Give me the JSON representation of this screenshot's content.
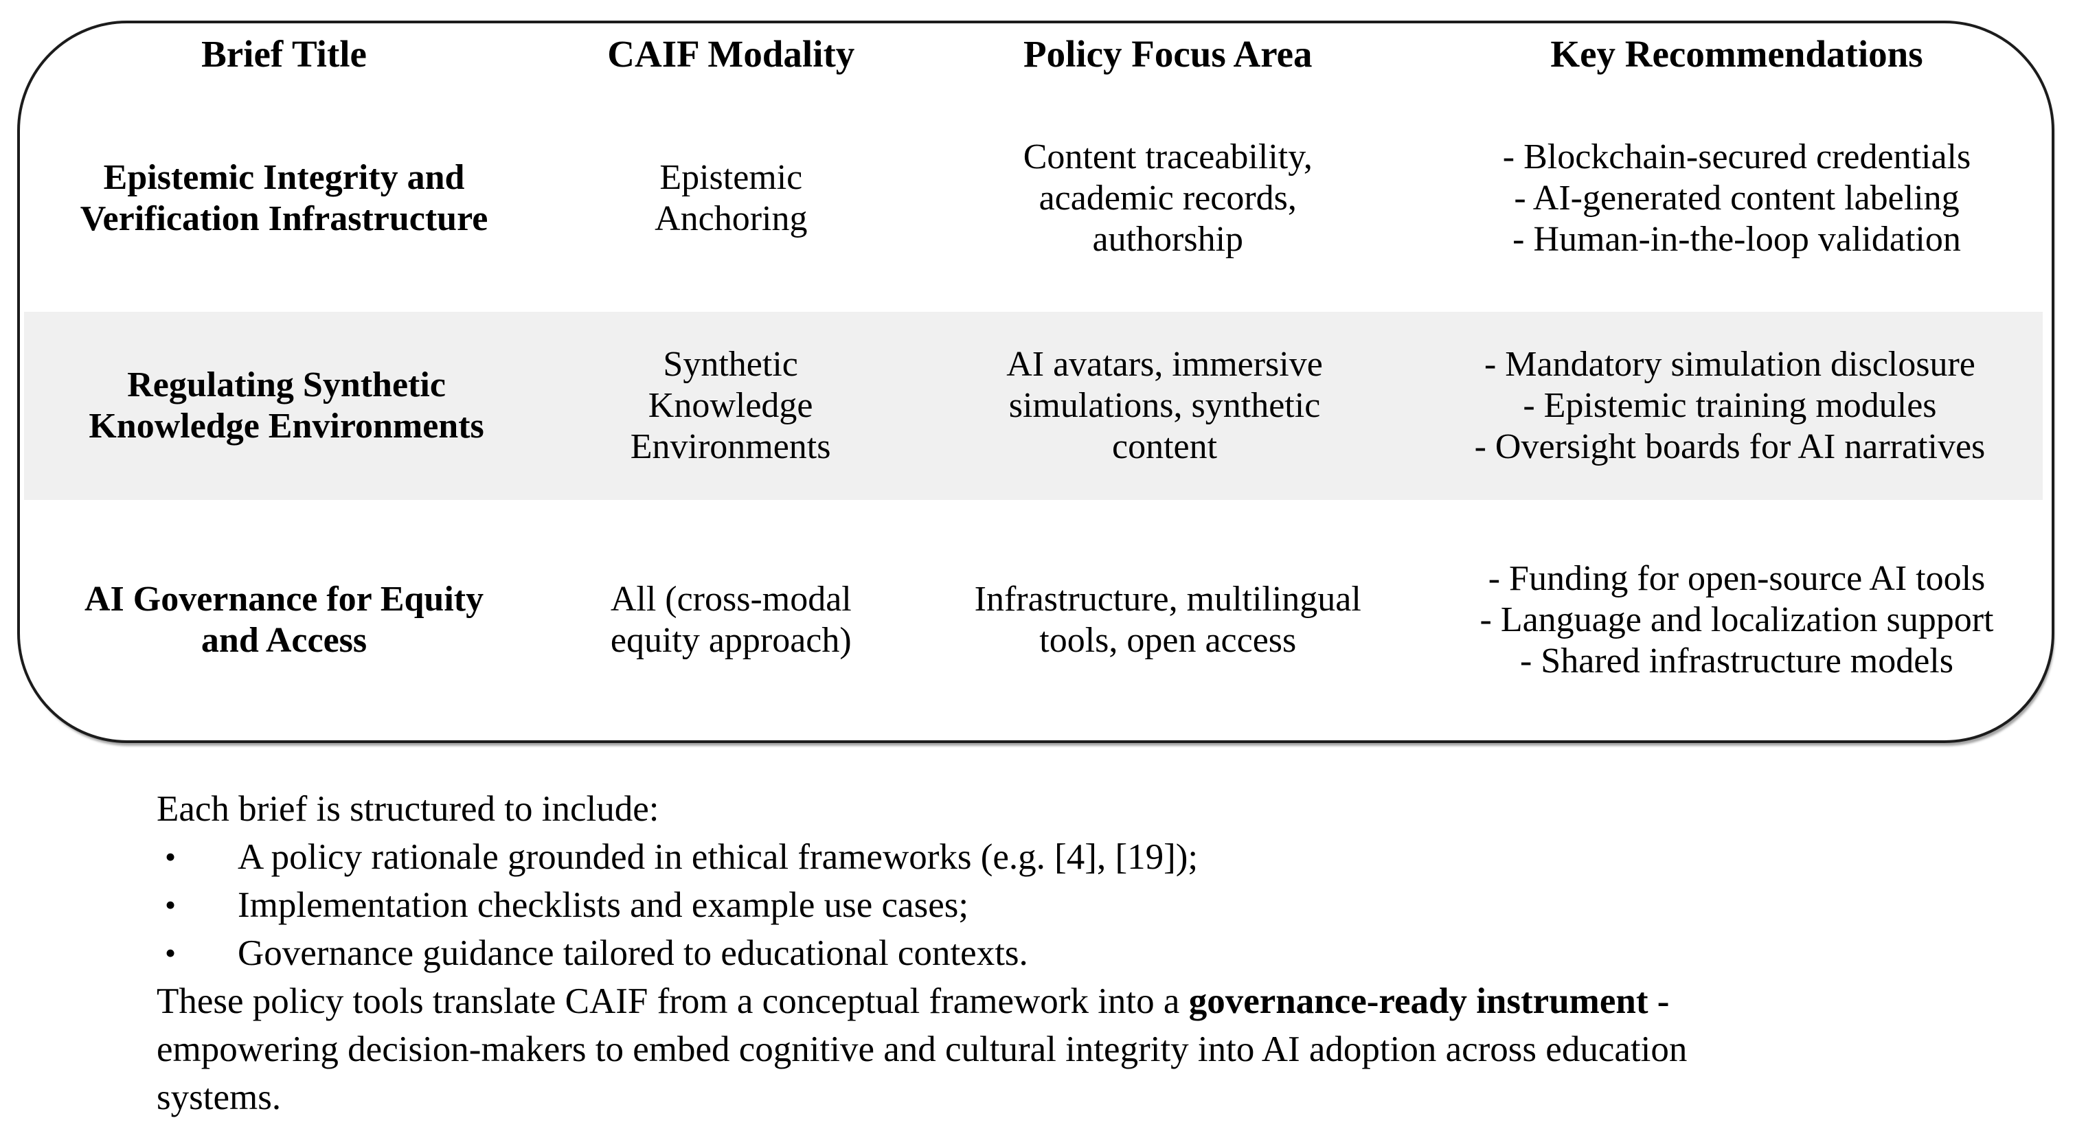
{
  "table": {
    "columns": [
      "Brief Title",
      "CAIF Modality",
      "Policy Focus Area",
      "Key Recommendations"
    ],
    "rows": [
      {
        "brief_title_lines": [
          "Epistemic Integrity and",
          "Verification Infrastructure"
        ],
        "caif_modality_lines": [
          "Epistemic",
          "Anchoring"
        ],
        "policy_focus_lines": [
          "Content traceability,",
          "academic records,",
          "authorship"
        ],
        "key_recommendations": [
          "- Blockchain-secured credentials",
          "- AI-generated content labeling",
          "- Human-in-the-loop validation"
        ]
      },
      {
        "brief_title_lines": [
          "Regulating Synthetic",
          "Knowledge Environments"
        ],
        "caif_modality_lines": [
          "Synthetic",
          "Knowledge",
          "Environments"
        ],
        "policy_focus_lines": [
          "AI avatars, immersive",
          "simulations, synthetic",
          "content"
        ],
        "key_recommendations": [
          "- Mandatory simulation disclosure",
          "- Epistemic training modules",
          "- Oversight boards for AI narratives"
        ]
      },
      {
        "brief_title_lines": [
          "AI Governance for Equity",
          "and Access"
        ],
        "caif_modality_lines": [
          "All (cross-modal",
          "equity approach)"
        ],
        "policy_focus_lines": [
          "Infrastructure, multilingual",
          "tools, open access"
        ],
        "key_recommendations": [
          "- Funding for open-source AI tools",
          "- Language and localization support",
          "- Shared infrastructure models"
        ]
      }
    ]
  },
  "notes": {
    "intro": "Each brief is structured to include:",
    "bullet_glyph": "•",
    "bullets": [
      "A policy rationale grounded in ethical frameworks (e.g. [4], [19]);",
      "Implementation checklists and example use cases;",
      "Governance guidance tailored to educational contexts."
    ],
    "closing": {
      "prefix": "These policy tools translate CAIF from a conceptual framework into a ",
      "bold": "governance-ready instrument -",
      "line2": "empowering decision-makers to embed cognitive and cultural integrity into AI adoption across education",
      "line3": "systems."
    }
  },
  "colors": {
    "background": "#ffffff",
    "text": "#000000",
    "border": "#1c1c1c",
    "row_shading": "#f0f0f0"
  }
}
